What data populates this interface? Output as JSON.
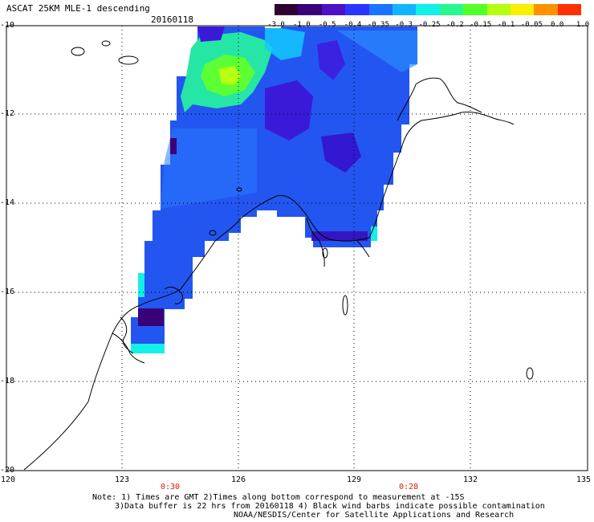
{
  "title": "ASCAT 25KM MLE-1 descending",
  "date": "20160118",
  "colorbar": {
    "labels": [
      "-3.0",
      "-1.0",
      "-0.5",
      "-0.4",
      "-0.35",
      "-0.3",
      "-0.25",
      "-0.2",
      "-0.15",
      "-0.1",
      "-0.05",
      "0.0",
      "1.0"
    ],
    "colors": [
      "#300030",
      "#3a007a",
      "#4b10c8",
      "#2a36ff",
      "#1a74ff",
      "#13b4ff",
      "#12f0e8",
      "#28f78e",
      "#54ff2a",
      "#b4ff10",
      "#f8f000",
      "#ff9000",
      "#ff3000"
    ]
  },
  "axes": {
    "lat_labels": [
      "-10",
      "-12",
      "-14",
      "-16",
      "-18",
      "-20"
    ],
    "lon_labels": [
      "120",
      "123",
      "126",
      "129",
      "132",
      "135"
    ]
  },
  "times": [
    "0:30",
    "0:28"
  ],
  "notes": [
    "Note: 1) Times are GMT 2)Times along bottom correspond to measurement at -15S",
    "3)Data buffer is 22 hrs from 20160118 4) Black wind barbs indicate possible contamination",
    "NOAA/NESDIS/Center for Satellite Applications and Research"
  ]
}
